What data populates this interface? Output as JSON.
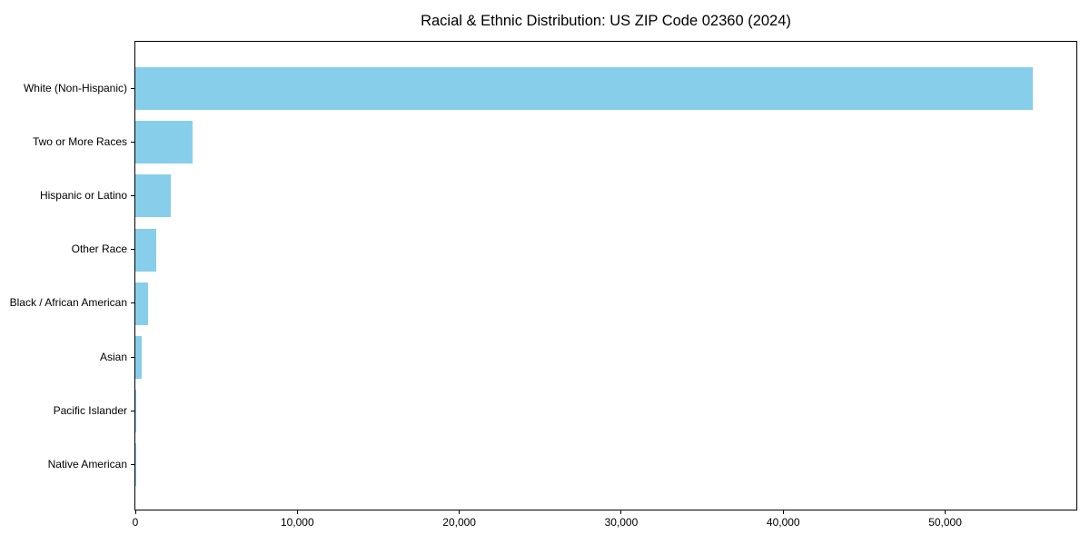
{
  "chart_data": {
    "type": "bar",
    "orientation": "horizontal",
    "title": "Racial & Ethnic Distribution: US ZIP Code 02360 (2024)",
    "categories": [
      "White (Non-Hispanic)",
      "Two or More Races",
      "Hispanic or Latino",
      "Other Race",
      "Black / African American",
      "Asian",
      "Pacific Islander",
      "Native American"
    ],
    "values": [
      55400,
      3520,
      2170,
      1310,
      770,
      380,
      40,
      10
    ],
    "xlabel": "",
    "ylabel": "",
    "xlim": [
      0,
      58100
    ],
    "xticks": [
      {
        "value": 0,
        "label": "0"
      },
      {
        "value": 10000,
        "label": "10,000"
      },
      {
        "value": 20000,
        "label": "20,000"
      },
      {
        "value": 30000,
        "label": "30,000"
      },
      {
        "value": 40000,
        "label": "40,000"
      },
      {
        "value": 50000,
        "label": "50,000"
      }
    ],
    "bar_color": "#87CEEB",
    "axis_color": "#000000",
    "text_color": "#000000",
    "background_color": "#ffffff",
    "grid": false,
    "legend": null
  }
}
